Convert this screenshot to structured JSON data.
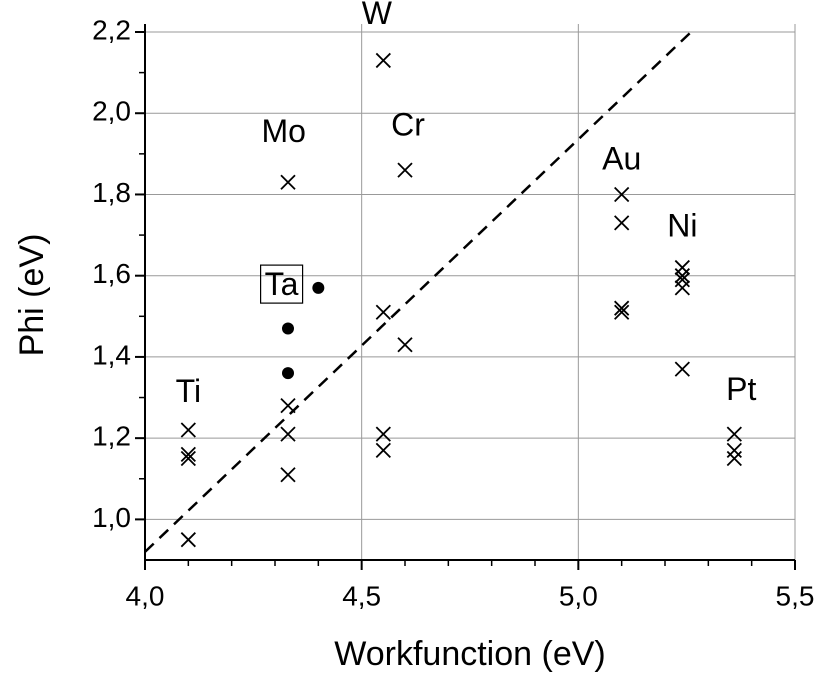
{
  "chart_data": {
    "type": "scatter",
    "x_label": "Workfunction (eV)",
    "y_label": "Phi (eV)",
    "xlim": [
      4.0,
      5.5
    ],
    "ylim": [
      0.9,
      2.2
    ],
    "xticks": [
      {
        "value": 4.0,
        "label": "4,0"
      },
      {
        "value": 4.5,
        "label": "4,5"
      },
      {
        "value": 5.0,
        "label": "5,0"
      },
      {
        "value": 5.5,
        "label": "5,5"
      }
    ],
    "yticks": [
      {
        "value": 1.0,
        "label": "1,0"
      },
      {
        "value": 1.2,
        "label": "1,2"
      },
      {
        "value": 1.4,
        "label": "1,4"
      },
      {
        "value": 1.6,
        "label": "1,6"
      },
      {
        "value": 1.8,
        "label": "1,8"
      },
      {
        "value": 2.0,
        "label": "2,0"
      },
      {
        "value": 2.2,
        "label": "2,2"
      }
    ],
    "xminor": 4,
    "yminor": 1,
    "grid": true,
    "series": [
      {
        "marker": "x",
        "color": "#000000",
        "x": [
          4.1,
          4.1,
          4.1,
          4.1,
          4.33,
          4.33,
          4.33,
          4.33,
          4.55,
          4.55,
          4.55,
          4.55,
          4.6,
          4.6,
          5.1,
          5.1,
          5.1,
          5.1,
          5.24,
          5.24,
          5.24,
          5.24,
          5.24,
          5.36,
          5.36,
          5.36
        ],
        "y": [
          1.22,
          1.16,
          1.15,
          0.95,
          1.83,
          1.28,
          1.21,
          1.11,
          2.13,
          1.51,
          1.21,
          1.17,
          1.86,
          1.43,
          1.8,
          1.73,
          1.52,
          1.51,
          1.62,
          1.6,
          1.59,
          1.57,
          1.37,
          1.21,
          1.17,
          1.15
        ]
      },
      {
        "marker": "o",
        "color": "#000000",
        "x": [
          4.33,
          4.33,
          4.4
        ],
        "y": [
          1.47,
          1.36,
          1.57
        ]
      }
    ],
    "fit_line": {
      "x": [
        4.0,
        5.27
      ],
      "y": [
        0.92,
        2.21
      ],
      "color": "#000000",
      "dash": true
    },
    "annotations": [
      {
        "text": "Ti",
        "x": 4.1,
        "y": 1.31
      },
      {
        "text": "Mo",
        "x": 4.32,
        "y": 1.95
      },
      {
        "text": "Ta",
        "x": 4.315,
        "y": 1.573,
        "boxed": true
      },
      {
        "text": "W",
        "x": 4.535,
        "y": 2.24
      },
      {
        "text": "Cr",
        "x": 4.607,
        "y": 1.966
      },
      {
        "text": "Au",
        "x": 5.1,
        "y": 1.882
      },
      {
        "text": "Ni",
        "x": 5.24,
        "y": 1.717
      },
      {
        "text": "Pt",
        "x": 5.376,
        "y": 1.315
      }
    ]
  }
}
